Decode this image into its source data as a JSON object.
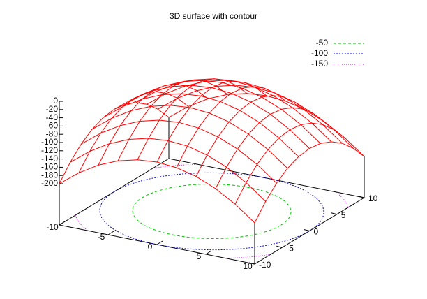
{
  "chart_data": {
    "type": "surface3d",
    "title": "3D surface with contour",
    "x": [
      -10,
      -8,
      -6,
      -4,
      -2,
      0,
      2,
      4,
      6,
      8,
      10
    ],
    "y": [
      -10,
      -8,
      -6,
      -4,
      -2,
      0,
      2,
      4,
      6,
      8,
      10
    ],
    "z": [
      [
        -200,
        -164,
        -136,
        -116,
        -104,
        -100,
        -104,
        -116,
        -136,
        -164,
        -200
      ],
      [
        -164,
        -128,
        -100,
        -80,
        -68,
        -64,
        -68,
        -80,
        -100,
        -128,
        -164
      ],
      [
        -136,
        -100,
        -72,
        -52,
        -40,
        -36,
        -40,
        -52,
        -72,
        -100,
        -136
      ],
      [
        -116,
        -80,
        -52,
        -32,
        -20,
        -16,
        -20,
        -32,
        -52,
        -80,
        -116
      ],
      [
        -104,
        -68,
        -40,
        -20,
        -8,
        -4,
        -8,
        -20,
        -40,
        -68,
        -104
      ],
      [
        -100,
        -64,
        -36,
        -16,
        -4,
        0,
        -4,
        -16,
        -36,
        -64,
        -100
      ],
      [
        -104,
        -68,
        -40,
        -20,
        -8,
        -4,
        -8,
        -20,
        -40,
        -68,
        -104
      ],
      [
        -116,
        -80,
        -52,
        -32,
        -20,
        -16,
        -20,
        -32,
        -52,
        -80,
        -116
      ],
      [
        -136,
        -100,
        -72,
        -52,
        -40,
        -36,
        -40,
        -52,
        -72,
        -100,
        -136
      ],
      [
        -164,
        -128,
        -100,
        -80,
        -68,
        -64,
        -68,
        -80,
        -100,
        -128,
        -164
      ],
      [
        -200,
        -164,
        -136,
        -116,
        -104,
        -100,
        -104,
        -116,
        -136,
        -164,
        -200
      ]
    ],
    "surface_color": "#ff0000",
    "xlim": [
      -10,
      10
    ],
    "ylim": [
      -10,
      10
    ],
    "zlim": [
      -200,
      0
    ],
    "xticks": [
      -10,
      -5,
      0,
      5,
      10
    ],
    "yticks": [
      -10,
      -5,
      0,
      5,
      10
    ],
    "zticks": [
      0,
      -20,
      -40,
      -60,
      -80,
      -100,
      -120,
      -140,
      -160,
      -180,
      -200
    ],
    "contours": [
      {
        "name": "-50",
        "value": -50,
        "color": "#00c000",
        "dash": "4,3"
      },
      {
        "name": "-100",
        "value": -100,
        "color": "#0000e0",
        "dash": "2,2"
      },
      {
        "name": "-150",
        "value": -150,
        "color": "#c000ff",
        "dash": "1,2"
      }
    ]
  }
}
